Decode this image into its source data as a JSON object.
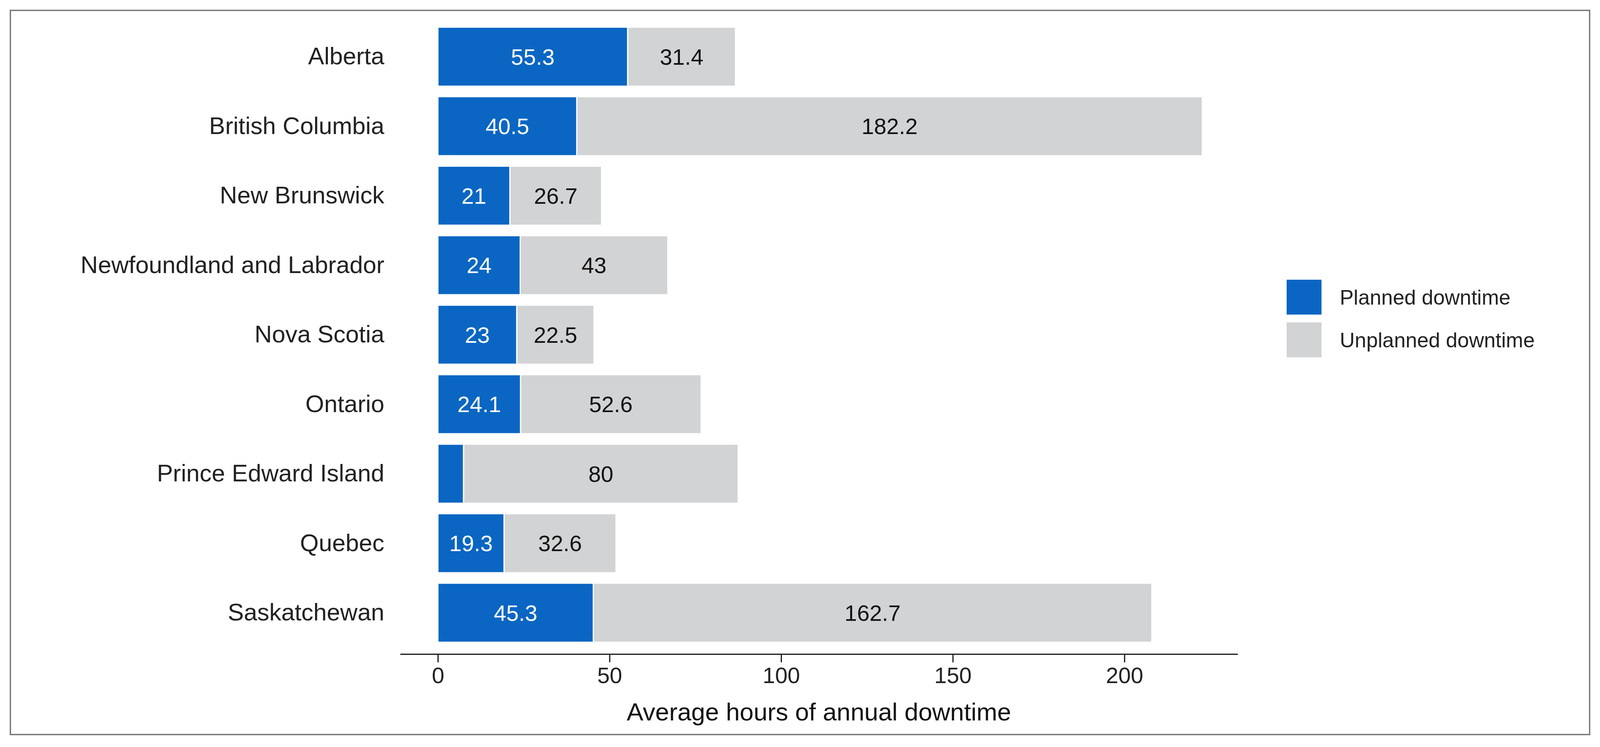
{
  "chart_data": {
    "type": "bar",
    "orientation": "horizontal",
    "stacked": true,
    "data_labels": true,
    "legend": "right",
    "grid": false,
    "x_label": "Average hours of annual downtime",
    "categories": [
      "Alberta",
      "British Columbia",
      "New Brunswick",
      "Newfoundland and Labrador",
      "Nova Scotia",
      "Ontario",
      "Prince Edward Island",
      "Quebec",
      "Saskatchewan"
    ],
    "series": [
      {
        "name": "Planned downtime",
        "color": "#0a66c2",
        "values": [
          55.3,
          40.5,
          21,
          24,
          23,
          24.1,
          7.5,
          19.3,
          45.3
        ],
        "value_labels": [
          "55.3",
          "40.5",
          "21",
          "24",
          "23",
          "24.1",
          null,
          "19.3",
          "45.3"
        ]
      },
      {
        "name": "Unplanned downtime",
        "color": "#d1d3d4",
        "values": [
          31.4,
          182.2,
          26.7,
          43,
          22.5,
          52.6,
          80,
          32.6,
          162.7
        ]
      }
    ],
    "xlim": [
      -11,
      233
    ],
    "xticks": [
      0,
      50,
      100,
      150,
      200
    ]
  }
}
